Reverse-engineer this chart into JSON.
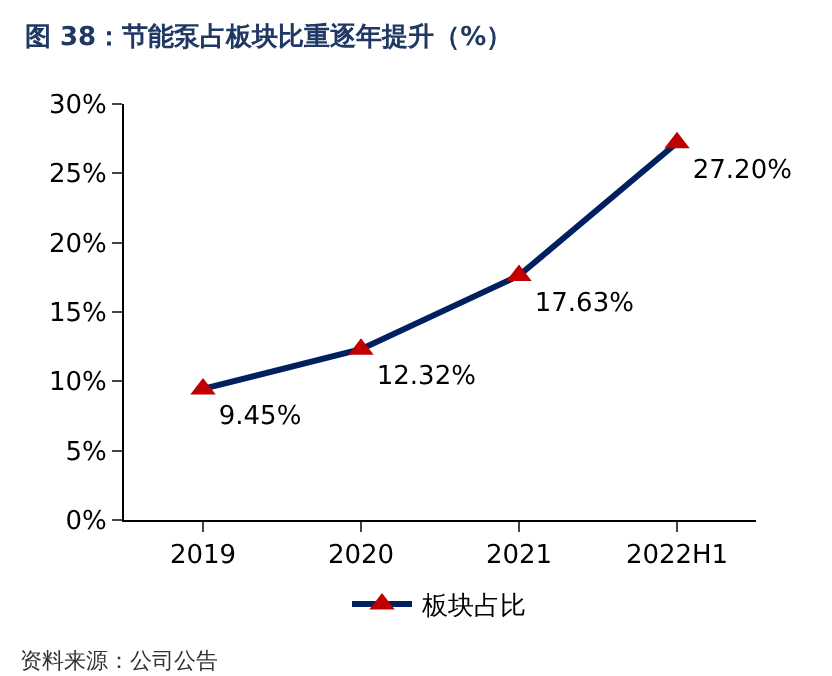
{
  "chart_data": {
    "type": "line",
    "title": "图 38：节能泵占板块比重逐年提升（%）",
    "annotations": [
      "资料来源：公司公告"
    ],
    "categories": [
      "2019",
      "2020",
      "2021",
      "2022H1"
    ],
    "series": [
      {
        "name": "板块占比",
        "color": "#002060",
        "colors": [
          "#c00000",
          "#c00000",
          "#c00000",
          "#c00000"
        ],
        "values": [
          9.45,
          12.32,
          17.63,
          27.2
        ],
        "value_labels": [
          "9.45%",
          "12.32%",
          "17.63%",
          "27.20%"
        ]
      }
    ],
    "ylim": [
      0,
      30
    ],
    "yticks": [
      {
        "value": 0,
        "label": "0%"
      },
      {
        "value": 5,
        "label": "5%"
      },
      {
        "value": 10,
        "label": "10%"
      },
      {
        "value": 15,
        "label": "15%"
      },
      {
        "value": 20,
        "label": "20%"
      },
      {
        "value": 25,
        "label": "25%"
      },
      {
        "value": 30,
        "label": "30%"
      }
    ],
    "legend": "bottom",
    "marker": "triangle",
    "line_style": "solid"
  }
}
